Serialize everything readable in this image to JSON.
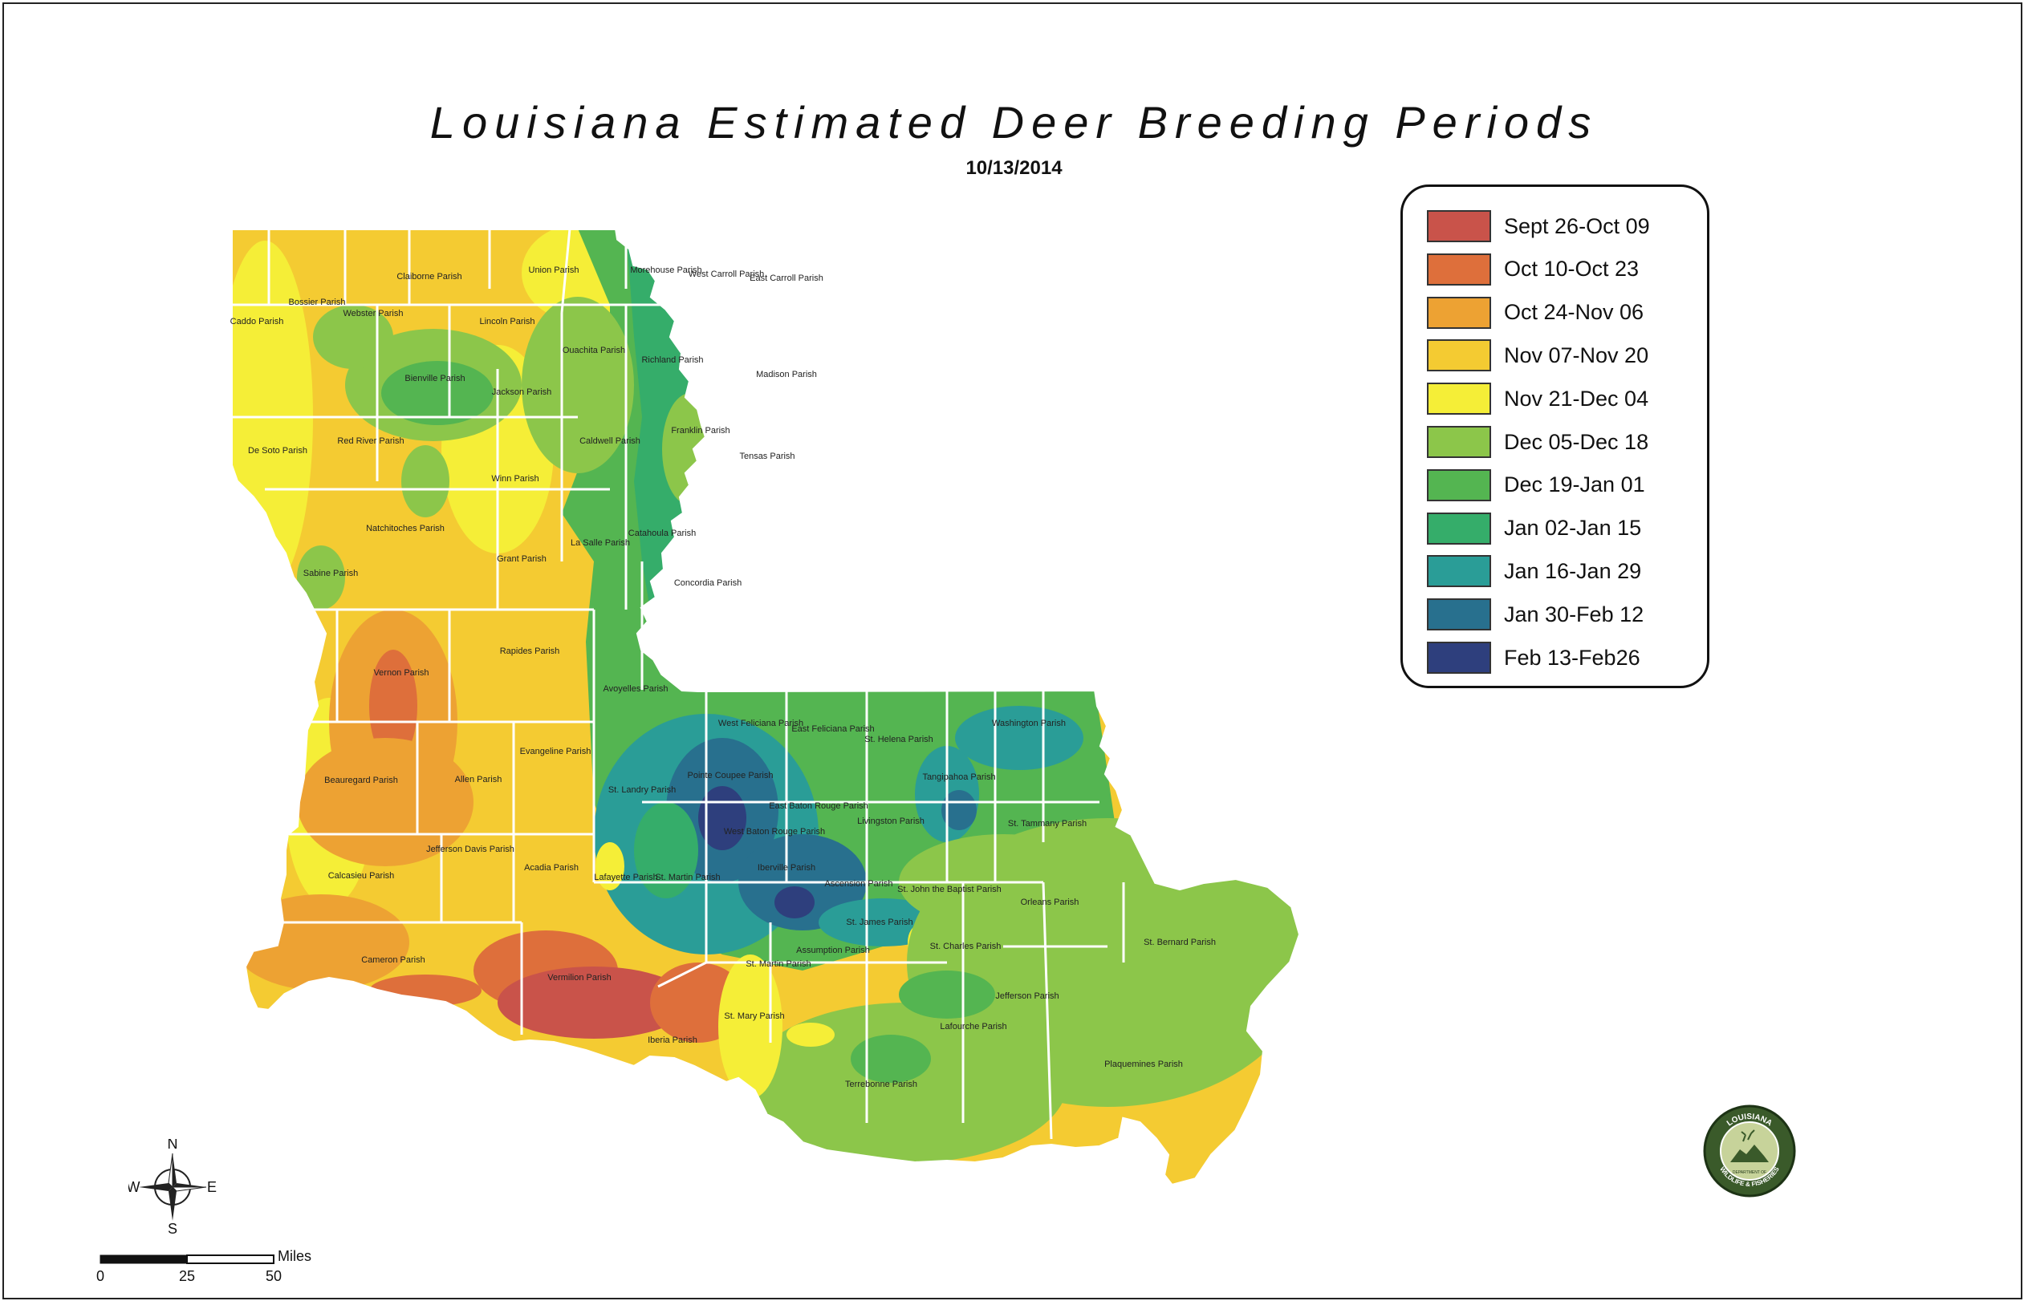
{
  "title": "Louisiana Estimated Deer Breeding Periods",
  "date": "10/13/2014",
  "legend": [
    {
      "label": "Sept 26-Oct 09",
      "color": "#c9534a"
    },
    {
      "label": "Oct 10-Oct 23",
      "color": "#de6f3b"
    },
    {
      "label": "Oct 24-Nov 06",
      "color": "#eda233"
    },
    {
      "label": "Nov 07-Nov 20",
      "color": "#f4cb32"
    },
    {
      "label": "Nov 21-Dec 04",
      "color": "#f5ee37"
    },
    {
      "label": "Dec 05-Dec 18",
      "color": "#8cc64a"
    },
    {
      "label": "Dec 19-Jan 01",
      "color": "#54b551"
    },
    {
      "label": "Jan 02-Jan 15",
      "color": "#35ad6a"
    },
    {
      "label": "Jan 16-Jan 29",
      "color": "#2a9d97"
    },
    {
      "label": "Jan 30-Feb 12",
      "color": "#28708e"
    },
    {
      "label": "Feb 13-Feb26",
      "color": "#2e3f7d"
    }
  ],
  "parishes": [
    "Caddo Parish",
    "Bossier Parish",
    "Webster Parish",
    "Claiborne Parish",
    "Union Parish",
    "Morehouse Parish",
    "West Carroll Parish",
    "East Carroll Parish",
    "Lincoln Parish",
    "Ouachita Parish",
    "Richland Parish",
    "Madison Parish",
    "Bienville Parish",
    "Jackson Parish",
    "De Soto Parish",
    "Red River Parish",
    "Caldwell Parish",
    "Franklin Parish",
    "Tensas Parish",
    "Winn Parish",
    "Natchitoches Parish",
    "La Salle Parish",
    "Catahoula Parish",
    "Sabine Parish",
    "Grant Parish",
    "Concordia Parish",
    "Rapides Parish",
    "Vernon Parish",
    "Avoyelles Parish",
    "West Feliciana Parish",
    "East Feliciana Parish",
    "St. Helena Parish",
    "Washington Parish",
    "Evangeline Parish",
    "Beauregard Parish",
    "Allen Parish",
    "Pointe Coupee Parish",
    "Tangipahoa Parish",
    "St. Landry Parish",
    "East Baton Rouge Parish",
    "Livingston Parish",
    "St. Tammany Parish",
    "West Baton Rouge Parish",
    "Jefferson Davis Parish",
    "Calcasieu Parish",
    "Acadia Parish",
    "Lafayette Parish",
    "St. Martin Parish",
    "Iberville Parish",
    "Ascension Parish",
    "St. John the Baptist Parish",
    "Orleans Parish",
    "St. Bernard Parish",
    "St. James Parish",
    "Cameron Parish",
    "Vermilion Parish",
    "Assumption Parish",
    "St. Charles Parish",
    "St. Martin Parish",
    "Jefferson Parish",
    "St. Mary Parish",
    "Iberia Parish",
    "Lafourche Parish",
    "Plaquemines Parish",
    "Terrebonne Parish"
  ],
  "compass": {
    "n": "N",
    "s": "S",
    "e": "E",
    "w": "W"
  },
  "scale": {
    "unit": "Miles",
    "ticks": [
      "0",
      "25",
      "50"
    ]
  },
  "logo": {
    "top_text": "LOUISIANA",
    "mid_text": "DEPARTMENT OF",
    "bottom_text": "WILDLIFE & FISHERIES"
  }
}
